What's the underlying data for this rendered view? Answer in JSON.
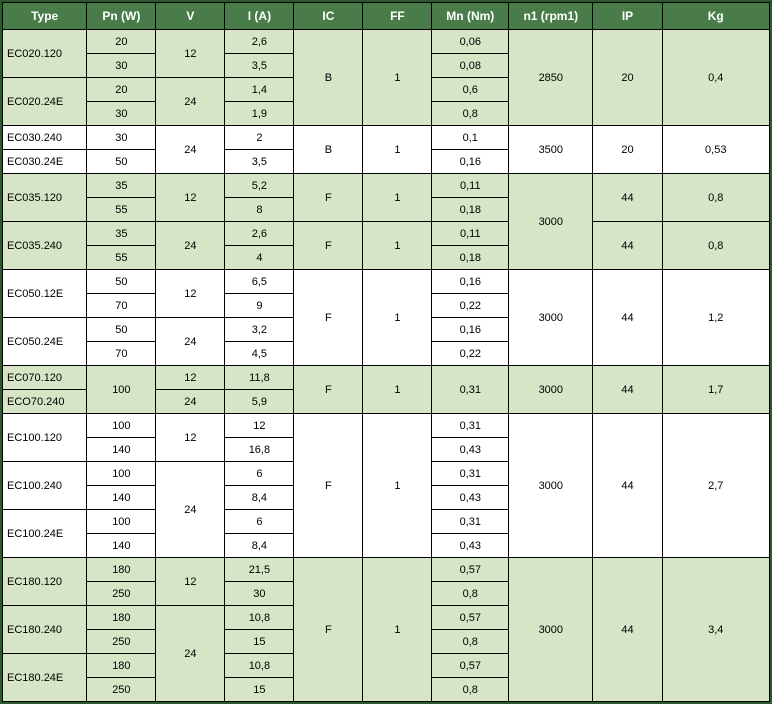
{
  "colors": {
    "header_bg": "#4a7c4a",
    "header_fg": "#ffffff",
    "green_row": "#d5e5c5",
    "white_row": "#ffffff",
    "border": "#000000",
    "outer_border": "#2d5a2d"
  },
  "columns": [
    {
      "key": "type",
      "label": "Type",
      "w": "11%"
    },
    {
      "key": "pn",
      "label": "Pn (W)",
      "w": "9%"
    },
    {
      "key": "v",
      "label": "V",
      "w": "9%"
    },
    {
      "key": "i",
      "label": "I (A)",
      "w": "9%"
    },
    {
      "key": "ic",
      "label": "IC",
      "w": "9%"
    },
    {
      "key": "ff",
      "label": "FF",
      "w": "9%"
    },
    {
      "key": "mn",
      "label": "Mn (Nm)",
      "w": "10%"
    },
    {
      "key": "n1",
      "label": "n1 (rpm1)",
      "w": "11%"
    },
    {
      "key": "ip",
      "label": "IP",
      "w": "9%"
    },
    {
      "key": "kg",
      "label": "Kg",
      "w": "14%"
    }
  ],
  "rows": [
    {
      "cls": "g",
      "cells": [
        {
          "v": "EC020.120",
          "rs": 2,
          "k": "type"
        },
        {
          "v": "20"
        },
        {
          "v": "12",
          "rs": 2
        },
        {
          "v": "2,6"
        },
        {
          "v": "B",
          "rs": 4
        },
        {
          "v": "1",
          "rs": 4
        },
        {
          "v": "0,06"
        },
        {
          "v": "2850",
          "rs": 4
        },
        {
          "v": "20",
          "rs": 4
        },
        {
          "v": "0,4",
          "rs": 4
        }
      ]
    },
    {
      "cls": "g",
      "cells": [
        {
          "v": "30"
        },
        {
          "v": "3,5"
        },
        {
          "v": "0,08"
        }
      ]
    },
    {
      "cls": "g",
      "cells": [
        {
          "v": "EC020.24E",
          "rs": 2,
          "k": "type"
        },
        {
          "v": "20"
        },
        {
          "v": "24",
          "rs": 2
        },
        {
          "v": "1,4"
        },
        {
          "v": "0,6"
        }
      ]
    },
    {
      "cls": "g",
      "cells": [
        {
          "v": "30"
        },
        {
          "v": "1,9"
        },
        {
          "v": "0,8"
        }
      ]
    },
    {
      "cls": "w",
      "cells": [
        {
          "v": "EC030.240",
          "k": "type"
        },
        {
          "v": "30"
        },
        {
          "v": "24",
          "rs": 2
        },
        {
          "v": "2"
        },
        {
          "v": "B",
          "rs": 2
        },
        {
          "v": "1",
          "rs": 2
        },
        {
          "v": "0,1"
        },
        {
          "v": "3500",
          "rs": 2
        },
        {
          "v": "20",
          "rs": 2
        },
        {
          "v": "0,53",
          "rs": 2
        }
      ]
    },
    {
      "cls": "w",
      "cells": [
        {
          "v": "EC030.24E",
          "k": "type"
        },
        {
          "v": "50"
        },
        {
          "v": "3,5"
        },
        {
          "v": "0,16"
        }
      ]
    },
    {
      "cls": "g",
      "cells": [
        {
          "v": "EC035.120",
          "rs": 2,
          "k": "type"
        },
        {
          "v": "35"
        },
        {
          "v": "12",
          "rs": 2
        },
        {
          "v": "5,2"
        },
        {
          "v": "F",
          "rs": 2
        },
        {
          "v": "1",
          "rs": 2
        },
        {
          "v": "0,11"
        },
        {
          "v": "3000",
          "rs": 4
        },
        {
          "v": "44",
          "rs": 2
        },
        {
          "v": "0,8",
          "rs": 2
        }
      ]
    },
    {
      "cls": "g",
      "cells": [
        {
          "v": "55"
        },
        {
          "v": "8"
        },
        {
          "v": "0,18"
        }
      ]
    },
    {
      "cls": "g",
      "cells": [
        {
          "v": "EC035.240",
          "rs": 2,
          "k": "type"
        },
        {
          "v": "35"
        },
        {
          "v": "24",
          "rs": 2
        },
        {
          "v": "2,6"
        },
        {
          "v": "F",
          "rs": 2
        },
        {
          "v": "1",
          "rs": 2
        },
        {
          "v": "0,11"
        },
        {
          "v": "44",
          "rs": 2
        },
        {
          "v": "0,8",
          "rs": 2
        }
      ]
    },
    {
      "cls": "g",
      "cells": [
        {
          "v": "55"
        },
        {
          "v": "4"
        },
        {
          "v": "0,18"
        }
      ]
    },
    {
      "cls": "w",
      "cells": [
        {
          "v": "EC050.12E",
          "rs": 2,
          "k": "type"
        },
        {
          "v": "50"
        },
        {
          "v": "12",
          "rs": 2
        },
        {
          "v": "6,5"
        },
        {
          "v": "F",
          "rs": 4
        },
        {
          "v": "1",
          "rs": 4
        },
        {
          "v": "0,16"
        },
        {
          "v": "3000",
          "rs": 4
        },
        {
          "v": "44",
          "rs": 4
        },
        {
          "v": "1,2",
          "rs": 4
        }
      ]
    },
    {
      "cls": "w",
      "cells": [
        {
          "v": "70"
        },
        {
          "v": "9"
        },
        {
          "v": "0,22"
        }
      ]
    },
    {
      "cls": "w",
      "cells": [
        {
          "v": "EC050.24E",
          "rs": 2,
          "k": "type"
        },
        {
          "v": "50"
        },
        {
          "v": "24",
          "rs": 2
        },
        {
          "v": "3,2"
        },
        {
          "v": "0,16"
        }
      ]
    },
    {
      "cls": "w",
      "cells": [
        {
          "v": "70"
        },
        {
          "v": "4,5"
        },
        {
          "v": "0,22"
        }
      ]
    },
    {
      "cls": "g",
      "cells": [
        {
          "v": "EC070.120",
          "k": "type"
        },
        {
          "v": "100",
          "rs": 2
        },
        {
          "v": "12"
        },
        {
          "v": "11,8"
        },
        {
          "v": "F",
          "rs": 2
        },
        {
          "v": "1",
          "rs": 2
        },
        {
          "v": "0,31",
          "rs": 2
        },
        {
          "v": "3000",
          "rs": 2
        },
        {
          "v": "44",
          "rs": 2
        },
        {
          "v": "1,7",
          "rs": 2
        }
      ]
    },
    {
      "cls": "g",
      "cells": [
        {
          "v": "ECO70.240",
          "k": "type"
        },
        {
          "v": "24"
        },
        {
          "v": "5,9"
        }
      ]
    },
    {
      "cls": "w",
      "cells": [
        {
          "v": "EC100.120",
          "rs": 2,
          "k": "type"
        },
        {
          "v": "100"
        },
        {
          "v": "12",
          "rs": 2
        },
        {
          "v": "12"
        },
        {
          "v": "F",
          "rs": 6
        },
        {
          "v": "1",
          "rs": 6
        },
        {
          "v": "0,31"
        },
        {
          "v": "3000",
          "rs": 6
        },
        {
          "v": "44",
          "rs": 6
        },
        {
          "v": "2,7",
          "rs": 6
        }
      ]
    },
    {
      "cls": "w",
      "cells": [
        {
          "v": "140"
        },
        {
          "v": "16,8"
        },
        {
          "v": "0,43"
        }
      ]
    },
    {
      "cls": "w",
      "cells": [
        {
          "v": "EC100.240",
          "rs": 2,
          "k": "type"
        },
        {
          "v": "100"
        },
        {
          "v": "24",
          "rs": 4
        },
        {
          "v": "6"
        },
        {
          "v": "0,31"
        }
      ]
    },
    {
      "cls": "w",
      "cells": [
        {
          "v": "140"
        },
        {
          "v": "8,4"
        },
        {
          "v": "0,43"
        }
      ]
    },
    {
      "cls": "w",
      "cells": [
        {
          "v": "EC100.24E",
          "rs": 2,
          "k": "type"
        },
        {
          "v": "100"
        },
        {
          "v": "6"
        },
        {
          "v": "0,31"
        }
      ]
    },
    {
      "cls": "w",
      "cells": [
        {
          "v": "140"
        },
        {
          "v": "8,4"
        },
        {
          "v": "0,43"
        }
      ]
    },
    {
      "cls": "g",
      "cells": [
        {
          "v": "EC180.120",
          "rs": 2,
          "k": "type"
        },
        {
          "v": "180"
        },
        {
          "v": "12",
          "rs": 2
        },
        {
          "v": "21,5"
        },
        {
          "v": "F",
          "rs": 6
        },
        {
          "v": "1",
          "rs": 6
        },
        {
          "v": "0,57"
        },
        {
          "v": "3000",
          "rs": 6
        },
        {
          "v": "44",
          "rs": 6
        },
        {
          "v": "3,4",
          "rs": 6
        }
      ]
    },
    {
      "cls": "g",
      "cells": [
        {
          "v": "250"
        },
        {
          "v": "30"
        },
        {
          "v": "0,8"
        }
      ]
    },
    {
      "cls": "g",
      "cells": [
        {
          "v": "EC180.240",
          "rs": 2,
          "k": "type"
        },
        {
          "v": "180"
        },
        {
          "v": "24",
          "rs": 4
        },
        {
          "v": "10,8"
        },
        {
          "v": "0,57"
        }
      ]
    },
    {
      "cls": "g",
      "cells": [
        {
          "v": "250"
        },
        {
          "v": "15"
        },
        {
          "v": "0,8"
        }
      ]
    },
    {
      "cls": "g",
      "cells": [
        {
          "v": "EC180.24E",
          "rs": 2,
          "k": "type"
        },
        {
          "v": "180"
        },
        {
          "v": "10,8"
        },
        {
          "v": "0,57"
        }
      ]
    },
    {
      "cls": "g",
      "cells": [
        {
          "v": "250"
        },
        {
          "v": "15"
        },
        {
          "v": "0,8"
        }
      ]
    }
  ]
}
